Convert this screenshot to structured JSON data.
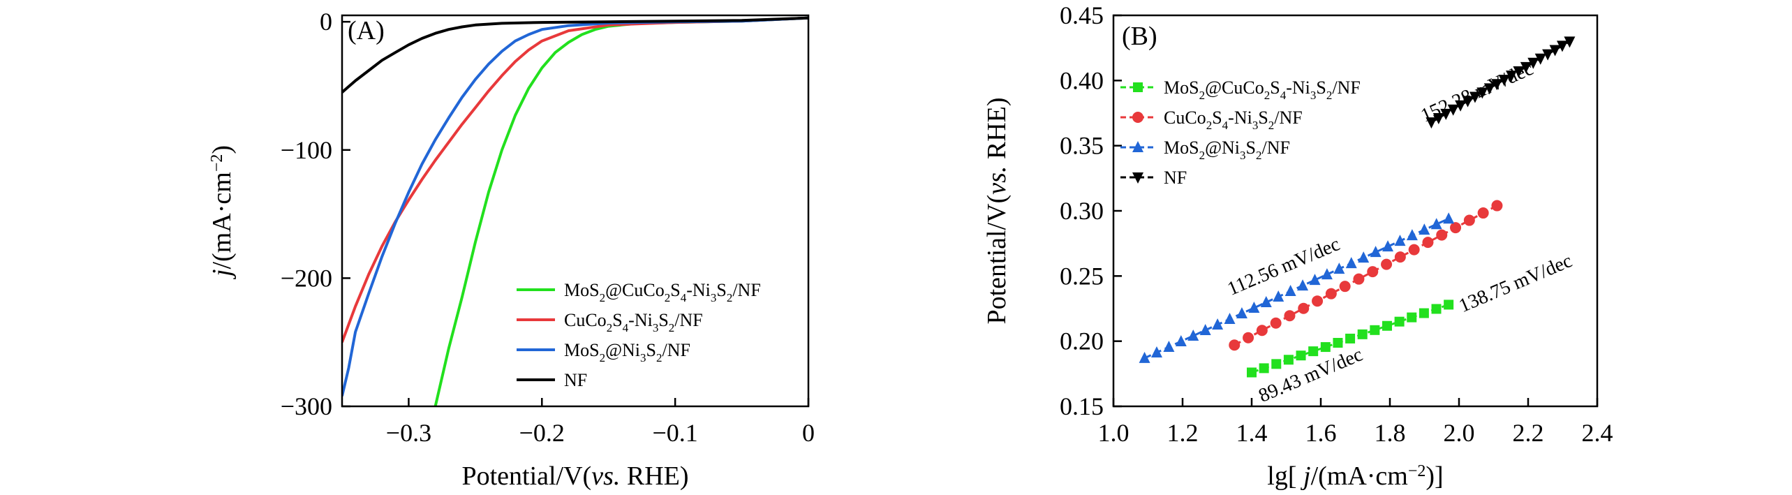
{
  "chart_data": [
    {
      "type": "line",
      "panel_label": "(A)",
      "xlabel": "Potential/V(vs. RHE)",
      "ylabel": "j/(mA·cm⁻²)",
      "xlim": [
        -0.35,
        0
      ],
      "ylim": [
        -300,
        5
      ],
      "xticks": [
        -0.3,
        -0.2,
        -0.1,
        0
      ],
      "xtick_labels": [
        "−0.3",
        "−0.2",
        "−0.1",
        "0"
      ],
      "yticks": [
        0,
        -100,
        -200,
        -300
      ],
      "ytick_labels": [
        "0",
        "−100",
        "−200",
        "−300"
      ],
      "legend_position": "lower-right",
      "series": [
        {
          "name": "MoS2@CuCo2S4-Ni3S2/NF",
          "name_parts": [
            [
              "MoS",
              ""
            ],
            [
              "2",
              "sub"
            ],
            [
              "@CuCo",
              ""
            ],
            [
              "2",
              "sub"
            ],
            [
              "S",
              ""
            ],
            [
              "4",
              "sub"
            ],
            [
              "-Ni",
              ""
            ],
            [
              "3",
              "sub"
            ],
            [
              "S",
              ""
            ],
            [
              "2",
              "sub"
            ],
            [
              "/NF",
              ""
            ]
          ],
          "color": "#22e01e",
          "x": [
            -0.28,
            -0.27,
            -0.26,
            -0.25,
            -0.24,
            -0.23,
            -0.22,
            -0.21,
            -0.2,
            -0.19,
            -0.18,
            -0.17,
            -0.16,
            -0.15,
            -0.13,
            -0.1,
            -0.05,
            0
          ],
          "y": [
            -300,
            -255,
            -215,
            -172,
            -133,
            -100,
            -73,
            -52,
            -36,
            -24,
            -16,
            -10,
            -6,
            -3.5,
            -1.5,
            -0.5,
            0.5,
            3
          ]
        },
        {
          "name": "CuCo2S4-Ni3S2/NF",
          "name_parts": [
            [
              "CuCo",
              ""
            ],
            [
              "2",
              "sub"
            ],
            [
              "S",
              ""
            ],
            [
              "4",
              "sub"
            ],
            [
              "-Ni",
              ""
            ],
            [
              "3",
              "sub"
            ],
            [
              "S",
              ""
            ],
            [
              "2",
              "sub"
            ],
            [
              "/NF",
              ""
            ]
          ],
          "color": "#e8393b",
          "x": [
            -0.35,
            -0.34,
            -0.33,
            -0.32,
            -0.31,
            -0.3,
            -0.29,
            -0.28,
            -0.27,
            -0.26,
            -0.25,
            -0.24,
            -0.23,
            -0.22,
            -0.21,
            -0.2,
            -0.18,
            -0.15,
            -0.1,
            -0.05,
            0
          ],
          "y": [
            -250,
            -222,
            -197,
            -175,
            -156,
            -139,
            -123,
            -108,
            -94,
            -80,
            -67,
            -54,
            -42,
            -31,
            -22,
            -15,
            -7,
            -2.5,
            -0.5,
            0.5,
            3
          ]
        },
        {
          "name": "MoS2@Ni3S2/NF",
          "name_parts": [
            [
              "MoS",
              ""
            ],
            [
              "2",
              "sub"
            ],
            [
              "@Ni",
              ""
            ],
            [
              "3",
              "sub"
            ],
            [
              "S",
              ""
            ],
            [
              "2",
              "sub"
            ],
            [
              "/NF",
              ""
            ]
          ],
          "color": "#2166d6",
          "x": [
            -0.35,
            -0.345,
            -0.34,
            -0.33,
            -0.32,
            -0.31,
            -0.3,
            -0.29,
            -0.28,
            -0.27,
            -0.26,
            -0.25,
            -0.24,
            -0.23,
            -0.22,
            -0.21,
            -0.2,
            -0.18,
            -0.15,
            -0.1,
            -0.05,
            0
          ],
          "y": [
            -292,
            -270,
            -242,
            -212,
            -183,
            -157,
            -133,
            -111,
            -92,
            -75,
            -59,
            -45,
            -33,
            -23,
            -15,
            -10,
            -6,
            -3,
            -1,
            0,
            0.5,
            3
          ]
        },
        {
          "name": "NF",
          "name_parts": [
            [
              "NF",
              ""
            ]
          ],
          "color": "#000000",
          "x": [
            -0.35,
            -0.34,
            -0.33,
            -0.32,
            -0.31,
            -0.3,
            -0.29,
            -0.28,
            -0.27,
            -0.26,
            -0.25,
            -0.23,
            -0.2,
            -0.15,
            -0.1,
            -0.05,
            0
          ],
          "y": [
            -55,
            -46,
            -38,
            -30,
            -24,
            -18,
            -13,
            -9,
            -6,
            -4,
            -2.5,
            -1.2,
            -0.5,
            0,
            0.5,
            1,
            3
          ]
        }
      ]
    },
    {
      "type": "scatter",
      "panel_label": "(B)",
      "xlabel": "lg[ j/(mA·cm⁻²)]",
      "ylabel": "Potential/V(vs. RHE)",
      "xlim": [
        1.0,
        2.4
      ],
      "ylim": [
        0.15,
        0.45
      ],
      "xticks": [
        1.0,
        1.2,
        1.4,
        1.6,
        1.8,
        2.0,
        2.2,
        2.4
      ],
      "xtick_labels": [
        "1.0",
        "1.2",
        "1.4",
        "1.6",
        "1.8",
        "2.0",
        "2.2",
        "2.4"
      ],
      "yticks": [
        0.15,
        0.2,
        0.25,
        0.3,
        0.35,
        0.4,
        0.45
      ],
      "ytick_labels": [
        "0.15",
        "0.20",
        "0.25",
        "0.30",
        "0.35",
        "0.40",
        "0.45"
      ],
      "legend_position": "top-left",
      "series": [
        {
          "name": "MoS2@CuCo2S4-Ni3S2/NF",
          "name_parts": [
            [
              "MoS",
              ""
            ],
            [
              "2",
              "sub"
            ],
            [
              "@CuCo",
              ""
            ],
            [
              "2",
              "sub"
            ],
            [
              "S",
              ""
            ],
            [
              "4",
              "sub"
            ],
            [
              "-Ni",
              ""
            ],
            [
              "3",
              "sub"
            ],
            [
              "S",
              ""
            ],
            [
              "2",
              "sub"
            ],
            [
              "/NF",
              ""
            ]
          ],
          "color": "#22e01e",
          "marker": "square",
          "line_style": "dashed",
          "x_range": [
            1.4,
            1.97
          ],
          "y_range": [
            0.176,
            0.228
          ],
          "n_points": 17,
          "tafel_label": "89.43 mV/dec"
        },
        {
          "name": "CuCo2S4-Ni3S2/NF",
          "name_parts": [
            [
              "CuCo",
              ""
            ],
            [
              "2",
              "sub"
            ],
            [
              "S",
              ""
            ],
            [
              "4",
              "sub"
            ],
            [
              "-Ni",
              ""
            ],
            [
              "3",
              "sub"
            ],
            [
              "S",
              ""
            ],
            [
              "2",
              "sub"
            ],
            [
              "/NF",
              ""
            ]
          ],
          "color": "#e8393b",
          "marker": "circle",
          "line_style": "dashed",
          "x_range": [
            1.35,
            2.11
          ],
          "y_range": [
            0.197,
            0.304
          ],
          "n_points": 20,
          "tafel_label": "138.75 mV/dec"
        },
        {
          "name": "MoS2@Ni3S2/NF",
          "name_parts": [
            [
              "MoS",
              ""
            ],
            [
              "2",
              "sub"
            ],
            [
              "@Ni",
              ""
            ],
            [
              "3",
              "sub"
            ],
            [
              "S",
              ""
            ],
            [
              "2",
              "sub"
            ],
            [
              "/NF",
              ""
            ]
          ],
          "color": "#2166d6",
          "marker": "triangle-up",
          "line_style": "dashed",
          "x_range": [
            1.09,
            1.97
          ],
          "y_range": [
            0.187,
            0.294
          ],
          "n_points": 26,
          "tafel_label": "112.56 mV/dec"
        },
        {
          "name": "NF",
          "name_parts": [
            [
              "NF",
              ""
            ]
          ],
          "color": "#000000",
          "marker": "triangle-down",
          "line_style": "dashed",
          "x_range": [
            1.92,
            2.32
          ],
          "y_range": [
            0.368,
            0.43
          ],
          "n_points": 20,
          "tafel_label": "152.28 mV/dec"
        }
      ]
    }
  ]
}
